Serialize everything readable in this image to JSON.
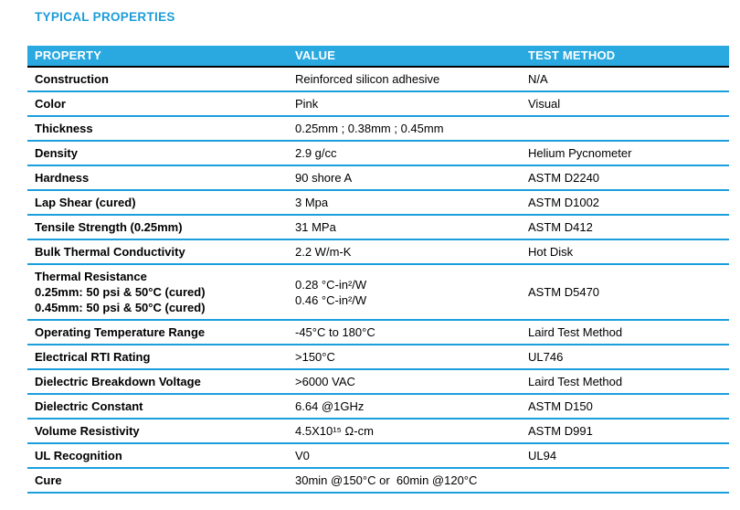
{
  "page": {
    "title": "TYPICAL PROPERTIES"
  },
  "colors": {
    "accent_blue": "#1b9fdc",
    "title_text": "#1b9dd9",
    "header_bg": "#29a9e0",
    "header_text": "#ffffff",
    "header_divider": "#000000",
    "row_divider": "#1b9fdc",
    "body_text": "#000000"
  },
  "table": {
    "columns": [
      {
        "key": "property",
        "label": "PROPERTY"
      },
      {
        "key": "value",
        "label": "VALUE"
      },
      {
        "key": "test",
        "label": "TEST METHOD"
      }
    ],
    "rows": [
      {
        "property": [
          "Construction"
        ],
        "value": [
          "Reinforced silicon adhesive"
        ],
        "test": "N/A"
      },
      {
        "property": [
          "Color"
        ],
        "value": [
          "Pink"
        ],
        "test": "Visual"
      },
      {
        "property": [
          "Thickness"
        ],
        "value": [
          "0.25mm ; 0.38mm ; 0.45mm"
        ],
        "test": ""
      },
      {
        "property": [
          "Density"
        ],
        "value": [
          "2.9 g/cc"
        ],
        "test": "Helium Pycnometer"
      },
      {
        "property": [
          "Hardness"
        ],
        "value": [
          "90 shore A"
        ],
        "test": "ASTM D2240"
      },
      {
        "property": [
          "Lap Shear (cured)"
        ],
        "value": [
          "3 Mpa"
        ],
        "test": "ASTM D1002"
      },
      {
        "property": [
          "Tensile Strength (0.25mm)"
        ],
        "value": [
          "31 MPa"
        ],
        "test": "ASTM D412"
      },
      {
        "property": [
          "Bulk Thermal Conductivity"
        ],
        "value": [
          "2.2 W/m-K"
        ],
        "test": "Hot Disk"
      },
      {
        "property": [
          "Thermal Resistance",
          "0.25mm: 50 psi & 50°C (cured)",
          "0.45mm: 50 psi & 50°C (cured)"
        ],
        "value": [
          "0.28 °C-in²/W",
          "0.46 °C-in²/W"
        ],
        "test": "ASTM D5470"
      },
      {
        "property": [
          "Operating Temperature Range"
        ],
        "value": [
          "-45°C to 180°C"
        ],
        "test": "Laird Test Method"
      },
      {
        "property": [
          "Electrical RTI Rating"
        ],
        "value": [
          ">150°C"
        ],
        "test": "UL746"
      },
      {
        "property": [
          "Dielectric Breakdown Voltage"
        ],
        "value": [
          ">6000 VAC"
        ],
        "test": "Laird Test Method"
      },
      {
        "property": [
          "Dielectric Constant"
        ],
        "value": [
          "6.64 @1GHz"
        ],
        "test": "ASTM D150"
      },
      {
        "property": [
          "Volume Resistivity"
        ],
        "value": [
          "4.5X10¹⁵ Ω-cm"
        ],
        "test": "ASTM D991"
      },
      {
        "property": [
          "UL Recognition"
        ],
        "value": [
          "V0"
        ],
        "test": "UL94"
      },
      {
        "property": [
          "Cure"
        ],
        "value": [
          "30min @150°C or  60min @120°C"
        ],
        "test": ""
      }
    ]
  }
}
